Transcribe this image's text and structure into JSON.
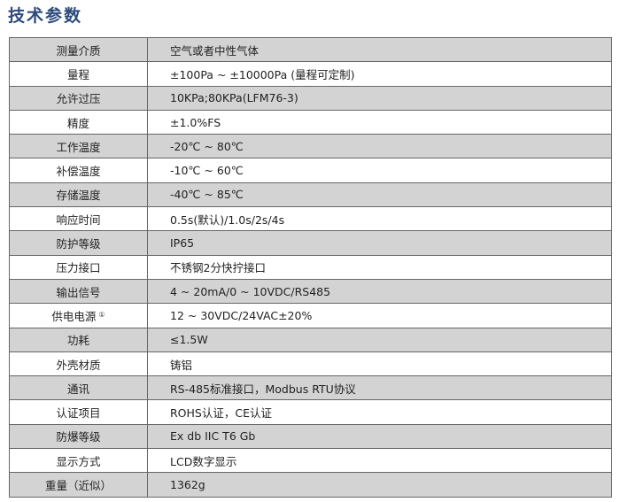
{
  "title": "技术参数",
  "rows": [
    {
      "label": "测量介质",
      "value": "空气或者中性气体"
    },
    {
      "label": "量程",
      "value": "±100Pa ~ ±10000Pa (量程可定制)"
    },
    {
      "label": "允许过压",
      "value": "10KPa;80KPa(LFM76-3)"
    },
    {
      "label": "精度",
      "value": "±1.0%FS"
    },
    {
      "label": "工作温度",
      "value": "-20℃ ~ 80℃"
    },
    {
      "label": "补偿温度",
      "value": "-10℃ ~ 60℃"
    },
    {
      "label": "存储温度",
      "value": "-40℃ ~ 85℃"
    },
    {
      "label": "响应时间",
      "value": "0.5s(默认)/1.0s/2s/4s"
    },
    {
      "label": "防护等级",
      "value": "IP65"
    },
    {
      "label": "压力接口",
      "value": "不锈钢2分快拧接口"
    },
    {
      "label": "输出信号",
      "value": "4 ~ 20mA/0 ~ 10VDC/RS485"
    },
    {
      "label": "供电电源",
      "note": "①",
      "value": "12 ~ 30VDC/24VAC±20%"
    },
    {
      "label": "功耗",
      "value": "≤1.5W"
    },
    {
      "label": "外壳材质",
      "value": "铸铝"
    },
    {
      "label": "通讯",
      "value": "RS-485标准接口，Modbus RTU协议"
    },
    {
      "label": "认证项目",
      "value": "ROHS认证，CE认证"
    },
    {
      "label": "防爆等级",
      "value": "Ex db IIC T6 Gb"
    },
    {
      "label": "显示方式",
      "value": "LCD数字显示"
    },
    {
      "label": "重量（近似）",
      "value": "1362g"
    }
  ]
}
